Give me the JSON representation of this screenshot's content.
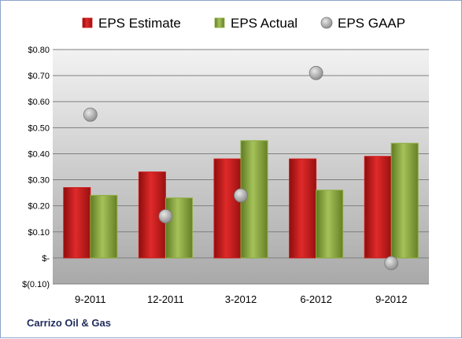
{
  "caption": "Carrizo Oil & Gas",
  "chart_data": {
    "type": "bar",
    "title": "",
    "xlabel": "",
    "ylabel": "",
    "categories": [
      "9-2011",
      "12-2011",
      "3-2012",
      "6-2012",
      "9-2012"
    ],
    "series": [
      {
        "name": "EPS Estimate",
        "kind": "bar",
        "color": "#cc1a1a",
        "values": [
          0.27,
          0.33,
          0.38,
          0.38,
          0.39
        ]
      },
      {
        "name": "EPS Actual",
        "kind": "bar",
        "color": "#8cac3c",
        "values": [
          0.24,
          0.23,
          0.45,
          0.26,
          0.44
        ]
      },
      {
        "name": "EPS GAAP",
        "kind": "scatter",
        "color": "#a8a8a8",
        "values": [
          0.55,
          0.16,
          0.24,
          0.71,
          -0.02
        ]
      }
    ],
    "ylim": [
      -0.1,
      0.8
    ],
    "yticks": [
      -0.1,
      0.0,
      0.1,
      0.2,
      0.3,
      0.4,
      0.5,
      0.6,
      0.7,
      0.8
    ],
    "ytick_labels": [
      "$(0.10)",
      "$-",
      "$0.10",
      "$0.20",
      "$0.30",
      "$0.40",
      "$0.50",
      "$0.60",
      "$0.70",
      "$0.80"
    ],
    "grid": true,
    "legend_position": "top"
  }
}
